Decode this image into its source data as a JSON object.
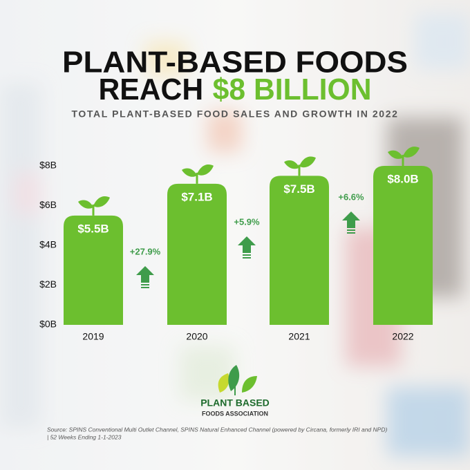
{
  "chart_data": {
    "type": "bar",
    "title": [
      "PLANT-BASED FOODS",
      "REACH"
    ],
    "title_highlight": "$8 BILLION",
    "subtitle": "TOTAL PLANT-BASED FOOD SALES AND GROWTH IN 2022",
    "categories": [
      "2019",
      "2020",
      "2021",
      "2022"
    ],
    "values": [
      5.5,
      7.1,
      7.5,
      8.0
    ],
    "value_labels": [
      "$5.5B",
      "$7.1B",
      "$7.5B",
      "$8.0B"
    ],
    "color": "#6cbf2f",
    "ylim": [
      0,
      8
    ],
    "yticks": [
      {
        "value": 0,
        "label": "$0B"
      },
      {
        "value": 2,
        "label": "$2B"
      },
      {
        "value": 4,
        "label": "$4B"
      },
      {
        "value": 6,
        "label": "$6B"
      },
      {
        "value": 8,
        "label": "$8B"
      }
    ],
    "growth": {
      "values": [
        27.9,
        5.9,
        6.6
      ],
      "value_labels": [
        "+27.9%",
        "+5.9%",
        "+6.6%"
      ],
      "color": "#3f9c4b"
    },
    "logo": [
      "PLANT BASED",
      "FOODS ASSOCIATION"
    ],
    "source": [
      "Source: SPINS Conventional Multi Outlet Channel, SPINS Natural Enhanced Channel (powered by Circana, formerly IRI and NPD)",
      "| 52 Weeks Ending 1-1-2023"
    ]
  }
}
